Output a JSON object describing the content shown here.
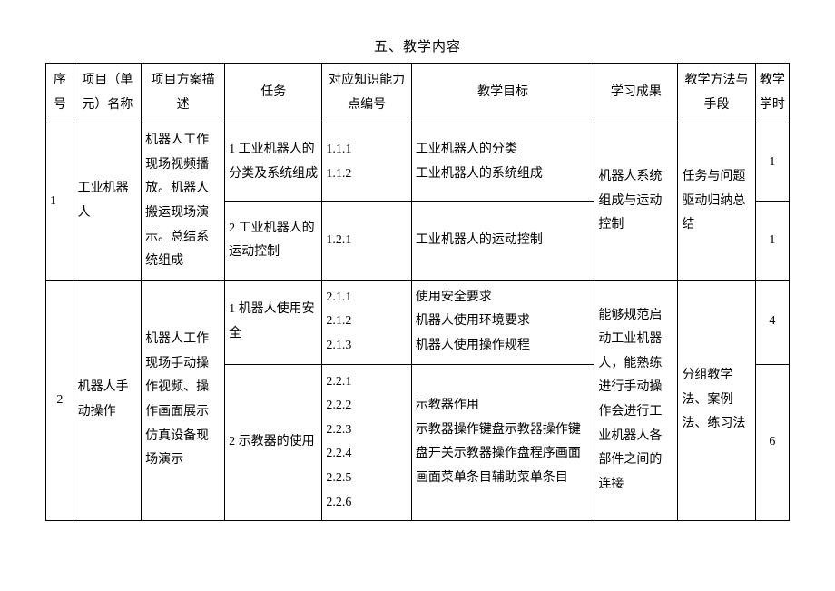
{
  "title": "五、教学内容",
  "headers": {
    "seq": "序号",
    "name": "项目（单元）名称",
    "desc": "项目方案描述",
    "task": "任务",
    "code": "对应知识能力点编号",
    "goal": "教学目标",
    "result": "学习成果",
    "method": "教学方法与手段",
    "hours": "教学学时"
  },
  "rows": [
    {
      "seq": "1",
      "name": "工业机器人",
      "desc": "机器人工作现场视频播放。机器人搬运现场演示。总结系统组成",
      "result": "机器人系统组成与运动控制",
      "method": "任务与问题驱动归纳总结",
      "tasks": [
        {
          "task": "1 工业机器人的分类及系统组成",
          "code": "1.1.1\n1.1.2",
          "goal": "工业机器人的分类\n工业机器人的系统组成",
          "hours": "1"
        },
        {
          "task": "2 工业机器人的运动控制",
          "code": "1.2.1",
          "goal": "工业机器人的运动控制",
          "hours": "1"
        }
      ]
    },
    {
      "seq": "2",
      "name": "机器人手动操作",
      "desc": "机器人工作现场手动操作视频、操作画面展示仿真设备现场演示",
      "result": "能够规范启动工业机器人，能熟练进行手动操作会进行工业机器人各部件之间的连接",
      "method": "分组教学法、案例法、练习法",
      "tasks": [
        {
          "task": "1 机器人使用安全",
          "code": "2.1.1\n2.1.2\n2.1.3",
          "goal": "使用安全要求\n机器人使用环境要求\n机器人使用操作规程",
          "hours": "4"
        },
        {
          "task": "2 示教器的使用",
          "code": "2.2.1\n2.2.2\n2.2.3\n2.2.4\n2.2.5\n2.2.6",
          "goal": "示教器作用\n示教器操作键盘示教器操作键盘开关示教器操作盘程序画面画面菜单条目辅助菜单条目",
          "hours": "6"
        }
      ]
    }
  ]
}
